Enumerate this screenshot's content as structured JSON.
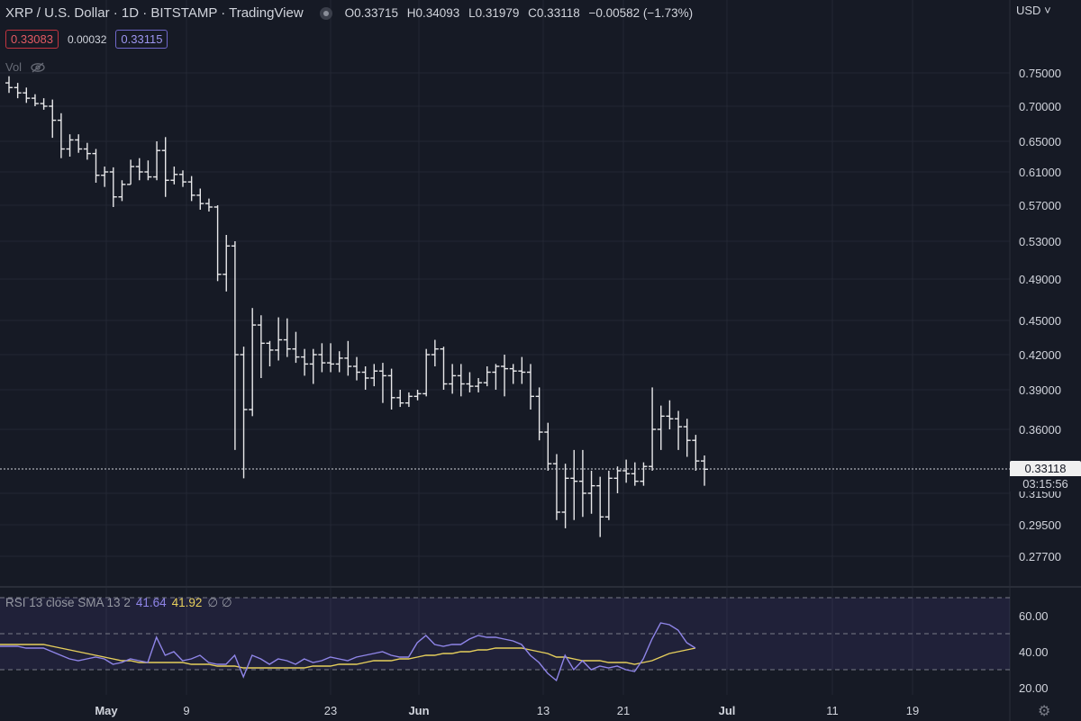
{
  "header": {
    "symbol": "XRP / U.S. Dollar · 1D · BITSTAMP · TradingView",
    "open_label": "O",
    "open": "0.33715",
    "high_label": "H",
    "high": "0.34093",
    "low_label": "L",
    "low": "0.31979",
    "close_label": "C",
    "close": "0.33118",
    "change": "−0.00582 (−1.73%)",
    "sell": "0.33083",
    "spread": "0.00032",
    "buy": "0.33115",
    "vol_label": "Vol",
    "currency": "USD"
  },
  "colors": {
    "background": "#161a25",
    "bar": "#e8e8ea",
    "rsi": "#8f85e8",
    "rsi_sma": "#e6cf5c",
    "sell": "#e35a63",
    "buy": "#9d96f0"
  },
  "price_tag": {
    "price": "0.33118",
    "countdown": "03:15:56"
  },
  "rsi": {
    "label": "RSI 13 close SMA 13 2",
    "value": "41.64",
    "sma": "41.92",
    "suffix": "∅ ∅",
    "ticks": [
      "60.00",
      "40.00",
      "20.00"
    ]
  },
  "chart_data": {
    "type": "ohlc",
    "price_ticks": [
      "0.75000",
      "0.70000",
      "0.65000",
      "0.61000",
      "0.57000",
      "0.53000",
      "0.49000",
      "0.45000",
      "0.42000",
      "0.39000",
      "0.36000",
      "0.31500",
      "0.29500",
      "0.27700"
    ],
    "x_ticks": [
      "May",
      "9",
      "23",
      "Jun",
      "13",
      "21",
      "Jul",
      "11",
      "19"
    ],
    "last_price": 0.33118,
    "bars": [
      [
        0.735,
        0.745,
        0.72,
        0.728
      ],
      [
        0.728,
        0.735,
        0.712,
        0.72
      ],
      [
        0.72,
        0.728,
        0.705,
        0.712
      ],
      [
        0.712,
        0.718,
        0.7,
        0.704
      ],
      [
        0.704,
        0.712,
        0.695,
        0.7
      ],
      [
        0.7,
        0.71,
        0.655,
        0.68
      ],
      [
        0.68,
        0.69,
        0.628,
        0.64
      ],
      [
        0.64,
        0.66,
        0.63,
        0.652
      ],
      [
        0.652,
        0.66,
        0.635,
        0.64
      ],
      [
        0.64,
        0.648,
        0.626,
        0.634
      ],
      [
        0.634,
        0.64,
        0.597,
        0.606
      ],
      [
        0.606,
        0.617,
        0.592,
        0.61
      ],
      [
        0.61,
        0.616,
        0.568,
        0.58
      ],
      [
        0.58,
        0.6,
        0.575,
        0.595
      ],
      [
        0.595,
        0.626,
        0.595,
        0.617
      ],
      [
        0.617,
        0.628,
        0.6,
        0.61
      ],
      [
        0.61,
        0.625,
        0.6,
        0.604
      ],
      [
        0.604,
        0.65,
        0.6,
        0.638
      ],
      [
        0.638,
        0.656,
        0.58,
        0.6
      ],
      [
        0.6,
        0.617,
        0.595,
        0.607
      ],
      [
        0.607,
        0.612,
        0.592,
        0.598
      ],
      [
        0.598,
        0.605,
        0.575,
        0.582
      ],
      [
        0.582,
        0.59,
        0.565,
        0.572
      ],
      [
        0.572,
        0.578,
        0.563,
        0.568
      ],
      [
        0.568,
        0.57,
        0.488,
        0.495
      ],
      [
        0.495,
        0.537,
        0.478,
        0.525
      ],
      [
        0.525,
        0.53,
        0.345,
        0.42
      ],
      [
        0.42,
        0.427,
        0.325,
        0.375
      ],
      [
        0.375,
        0.462,
        0.37,
        0.446
      ],
      [
        0.446,
        0.455,
        0.4,
        0.43
      ],
      [
        0.43,
        0.432,
        0.41,
        0.424
      ],
      [
        0.424,
        0.453,
        0.415,
        0.433
      ],
      [
        0.433,
        0.452,
        0.418,
        0.425
      ],
      [
        0.425,
        0.44,
        0.413,
        0.418
      ],
      [
        0.418,
        0.425,
        0.402,
        0.412
      ],
      [
        0.412,
        0.425,
        0.395,
        0.42
      ],
      [
        0.42,
        0.43,
        0.405,
        0.413
      ],
      [
        0.413,
        0.43,
        0.405,
        0.412
      ],
      [
        0.412,
        0.423,
        0.405,
        0.417
      ],
      [
        0.417,
        0.432,
        0.402,
        0.41
      ],
      [
        0.41,
        0.418,
        0.398,
        0.405
      ],
      [
        0.405,
        0.41,
        0.39,
        0.4
      ],
      [
        0.4,
        0.412,
        0.393,
        0.406
      ],
      [
        0.406,
        0.413,
        0.38,
        0.402
      ],
      [
        0.402,
        0.408,
        0.375,
        0.384
      ],
      [
        0.384,
        0.39,
        0.377,
        0.38
      ],
      [
        0.38,
        0.388,
        0.377,
        0.385
      ],
      [
        0.385,
        0.39,
        0.382,
        0.387
      ],
      [
        0.387,
        0.425,
        0.385,
        0.42
      ],
      [
        0.42,
        0.433,
        0.41,
        0.425
      ],
      [
        0.425,
        0.427,
        0.39,
        0.395
      ],
      [
        0.395,
        0.412,
        0.387,
        0.402
      ],
      [
        0.402,
        0.412,
        0.385,
        0.395
      ],
      [
        0.395,
        0.405,
        0.388,
        0.393
      ],
      [
        0.393,
        0.4,
        0.388,
        0.396
      ],
      [
        0.396,
        0.41,
        0.393,
        0.405
      ],
      [
        0.405,
        0.412,
        0.39,
        0.41
      ],
      [
        0.41,
        0.42,
        0.385,
        0.408
      ],
      [
        0.408,
        0.412,
        0.395,
        0.406
      ],
      [
        0.406,
        0.418,
        0.395,
        0.405
      ],
      [
        0.405,
        0.412,
        0.375,
        0.385
      ],
      [
        0.385,
        0.392,
        0.352,
        0.358
      ],
      [
        0.358,
        0.365,
        0.33,
        0.335
      ],
      [
        0.335,
        0.342,
        0.298,
        0.303
      ],
      [
        0.303,
        0.335,
        0.293,
        0.325
      ],
      [
        0.325,
        0.345,
        0.298,
        0.323
      ],
      [
        0.323,
        0.345,
        0.3,
        0.315
      ],
      [
        0.315,
        0.33,
        0.302,
        0.32
      ],
      [
        0.32,
        0.326,
        0.288,
        0.3
      ],
      [
        0.3,
        0.33,
        0.298,
        0.325
      ],
      [
        0.325,
        0.333,
        0.315,
        0.33
      ],
      [
        0.33,
        0.338,
        0.322,
        0.328
      ],
      [
        0.328,
        0.336,
        0.32,
        0.323
      ],
      [
        0.323,
        0.336,
        0.32,
        0.333
      ],
      [
        0.333,
        0.392,
        0.33,
        0.36
      ],
      [
        0.36,
        0.378,
        0.345,
        0.37
      ],
      [
        0.37,
        0.382,
        0.36,
        0.368
      ],
      [
        0.368,
        0.374,
        0.345,
        0.362
      ],
      [
        0.362,
        0.368,
        0.34,
        0.352
      ],
      [
        0.352,
        0.356,
        0.33,
        0.337
      ],
      [
        0.337,
        0.341,
        0.32,
        0.331
      ]
    ],
    "rsi_values": [
      43,
      43,
      43,
      42,
      42,
      42,
      40,
      38,
      36,
      35,
      36,
      37,
      36,
      33,
      34,
      36,
      35,
      34,
      48,
      38,
      40,
      35,
      36,
      38,
      34,
      33,
      33,
      38,
      26,
      38,
      36,
      33,
      36,
      35,
      33,
      36,
      34,
      35,
      37,
      36,
      35,
      37,
      38,
      39,
      40,
      38,
      37,
      37,
      45,
      49,
      44,
      43,
      44,
      44,
      47,
      49,
      48,
      48,
      47,
      46,
      44,
      38,
      34,
      28,
      24,
      38,
      30,
      35,
      30,
      32,
      31,
      32,
      30,
      29,
      36,
      47,
      56,
      55,
      52,
      45,
      42
    ],
    "rsi_sma_values": [
      44,
      44,
      44,
      44,
      44,
      44,
      43,
      42,
      41,
      40,
      39,
      38,
      37,
      36,
      35,
      35,
      34,
      34,
      34,
      34,
      34,
      34,
      33,
      33,
      33,
      32,
      32,
      32,
      31,
      31,
      31,
      31,
      31,
      31,
      31,
      31,
      32,
      32,
      32,
      33,
      33,
      33,
      34,
      35,
      35,
      35,
      36,
      36,
      37,
      38,
      38,
      39,
      39,
      40,
      40,
      41,
      41,
      42,
      42,
      42,
      42,
      41,
      40,
      39,
      37,
      37,
      36,
      35,
      35,
      35,
      34,
      34,
      34,
      33,
      34,
      35,
      37,
      39,
      40,
      41,
      42
    ]
  }
}
